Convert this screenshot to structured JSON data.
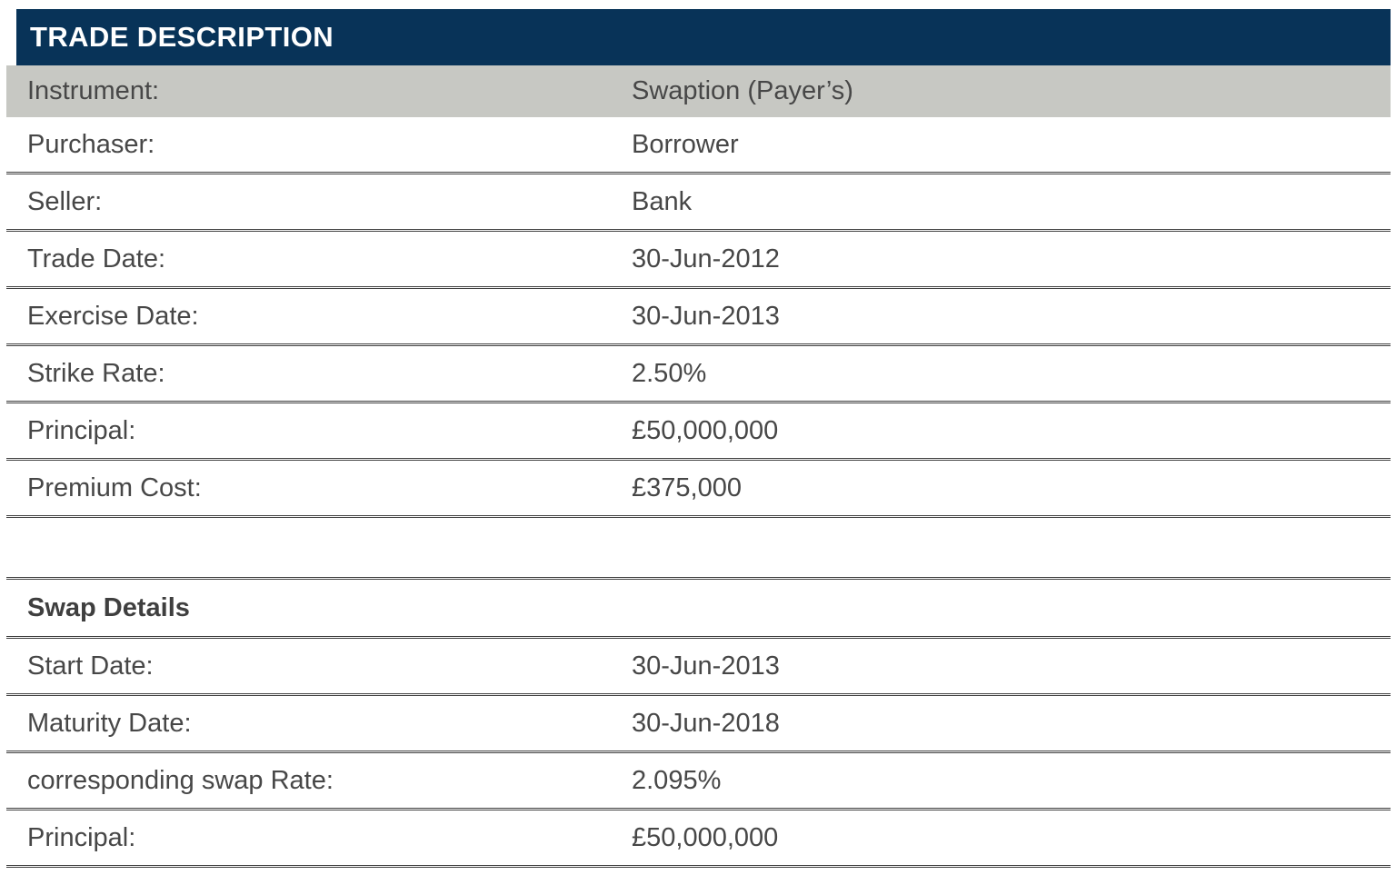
{
  "colors": {
    "header_bg": "#083358",
    "header_text": "#ffffff",
    "shaded_row_bg": "#c7c8c3",
    "text": "#474747",
    "heading_text": "#3f3f3f",
    "rule": "#3f3f3f"
  },
  "trade_description": {
    "title": "TRADE DESCRIPTION",
    "rows": [
      {
        "label": "Instrument:",
        "value": "Swaption (Payer’s)"
      },
      {
        "label": "Purchaser:",
        "value": "Borrower"
      },
      {
        "label": "Seller:",
        "value": "Bank"
      },
      {
        "label": "Trade Date:",
        "value": "30-Jun-2012"
      },
      {
        "label": "Exercise Date:",
        "value": "30-Jun-2013"
      },
      {
        "label": "Strike Rate:",
        "value": "2.50%"
      },
      {
        "label": "Principal:",
        "value": "£50,000,000"
      },
      {
        "label": "Premium Cost:",
        "value": "£375,000"
      }
    ]
  },
  "swap_details": {
    "heading": "Swap Details",
    "rows": [
      {
        "label": "Start Date:",
        "value": "30-Jun-2013"
      },
      {
        "label": "Maturity Date:",
        "value": "30-Jun-2018"
      },
      {
        "label": "corresponding swap Rate:",
        "value": "2.095%"
      },
      {
        "label": "Principal:",
        "value": "£50,000,000"
      }
    ]
  }
}
